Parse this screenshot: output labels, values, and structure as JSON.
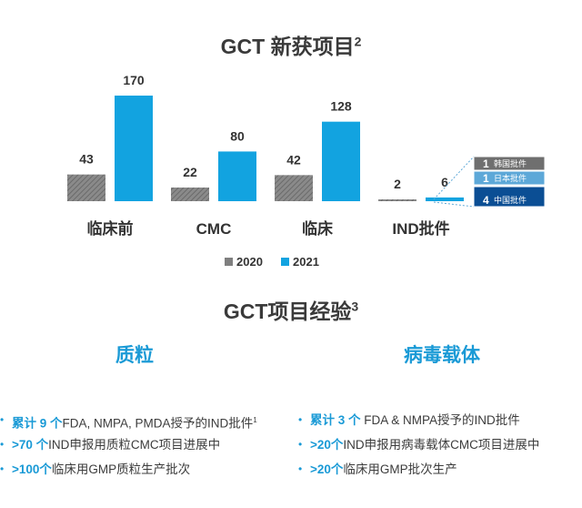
{
  "title_top": "GCT 新获项目",
  "title_top_sup": "2",
  "title_bottom": "GCT项目经验",
  "title_bottom_sup": "3",
  "chart_data": {
    "type": "bar",
    "categories": [
      "临床前",
      "CMC",
      "临床",
      "IND批件"
    ],
    "series": [
      {
        "name": "2020",
        "values": [
          43,
          22,
          42,
          2
        ],
        "color": "#7f7f7f",
        "pattern": "hatched"
      },
      {
        "name": "2021",
        "values": [
          170,
          80,
          128,
          6
        ],
        "color": "#12a3e0"
      }
    ],
    "legend_position": "bottom-center",
    "breakdown": {
      "of": "IND批件 2021",
      "items": [
        {
          "count": "1",
          "label": "韩国批件",
          "color": "#6f6f6f"
        },
        {
          "count": "1",
          "label": "日本批件",
          "color": "#5da8d8"
        },
        {
          "count": "4",
          "label": "中国批件",
          "color": "#0b4e94"
        }
      ]
    }
  },
  "left_column": {
    "heading": "质粒",
    "items": [
      {
        "hl": "累计 9 个",
        "text": "FDA, NMPA, PMDA授予的IND批件",
        "sup": "1"
      },
      {
        "hl": ">70 个",
        "text": "IND申报用质粒CMC项目进展中",
        "sup": ""
      },
      {
        "hl": ">100个",
        "text": "临床用GMP质粒生产批次",
        "sup": ""
      }
    ]
  },
  "right_column": {
    "heading": "病毒载体",
    "items": [
      {
        "hl": "累计 3 个",
        "text": " FDA & NMPA授予的IND批件",
        "sup": ""
      },
      {
        "hl": ">20个",
        "text": "IND申报用病毒载体CMC项目进展中",
        "sup": ""
      },
      {
        "hl": ">20个",
        "text": "临床用GMP批次生产",
        "sup": ""
      }
    ]
  }
}
